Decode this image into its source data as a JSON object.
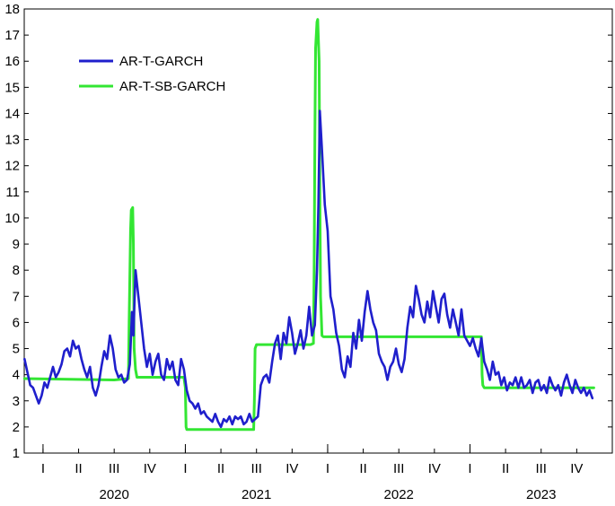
{
  "chart_data": {
    "type": "line",
    "title": "",
    "xlabel": "",
    "ylabel": "",
    "ylim": [
      1,
      18
    ],
    "y_ticks": [
      1,
      2,
      3,
      4,
      5,
      6,
      7,
      8,
      9,
      10,
      11,
      12,
      13,
      14,
      15,
      16,
      17,
      18
    ],
    "x_axis": {
      "range": [
        2020.0,
        2024.0
      ],
      "quarter_labels": [
        {
          "t": 2020.0,
          "label": "I"
        },
        {
          "t": 2020.25,
          "label": "II"
        },
        {
          "t": 2020.5,
          "label": "III"
        },
        {
          "t": 2020.75,
          "label": "IV"
        },
        {
          "t": 2021.0,
          "label": "I"
        },
        {
          "t": 2021.25,
          "label": "II"
        },
        {
          "t": 2021.5,
          "label": "III"
        },
        {
          "t": 2021.75,
          "label": "IV"
        },
        {
          "t": 2022.0,
          "label": "I"
        },
        {
          "t": 2022.25,
          "label": "II"
        },
        {
          "t": 2022.5,
          "label": "III"
        },
        {
          "t": 2022.75,
          "label": "IV"
        },
        {
          "t": 2023.0,
          "label": "I"
        },
        {
          "t": 2023.25,
          "label": "II"
        },
        {
          "t": 2023.5,
          "label": "III"
        },
        {
          "t": 2023.75,
          "label": "IV"
        }
      ],
      "year_labels": [
        {
          "t": 2020.5,
          "label": "2020"
        },
        {
          "t": 2021.5,
          "label": "2021"
        },
        {
          "t": 2022.5,
          "label": "2022"
        },
        {
          "t": 2023.5,
          "label": "2023"
        }
      ]
    },
    "legend_position": "top-left",
    "series": [
      {
        "name": "AR-T-GARCH",
        "color": "#1f1fcc",
        "points": [
          [
            2019.87,
            4.6
          ],
          [
            2019.89,
            4.1
          ],
          [
            2019.91,
            3.6
          ],
          [
            2019.93,
            3.5
          ],
          [
            2019.95,
            3.2
          ],
          [
            2019.97,
            2.9
          ],
          [
            2019.99,
            3.2
          ],
          [
            2020.01,
            3.7
          ],
          [
            2020.03,
            3.5
          ],
          [
            2020.05,
            3.9
          ],
          [
            2020.07,
            4.3
          ],
          [
            2020.09,
            3.9
          ],
          [
            2020.11,
            4.1
          ],
          [
            2020.13,
            4.4
          ],
          [
            2020.15,
            4.9
          ],
          [
            2020.17,
            5.0
          ],
          [
            2020.19,
            4.7
          ],
          [
            2020.21,
            5.3
          ],
          [
            2020.23,
            5.0
          ],
          [
            2020.25,
            5.1
          ],
          [
            2020.27,
            4.6
          ],
          [
            2020.29,
            4.2
          ],
          [
            2020.31,
            3.9
          ],
          [
            2020.33,
            4.3
          ],
          [
            2020.35,
            3.5
          ],
          [
            2020.37,
            3.2
          ],
          [
            2020.39,
            3.6
          ],
          [
            2020.41,
            4.3
          ],
          [
            2020.43,
            4.9
          ],
          [
            2020.45,
            4.6
          ],
          [
            2020.47,
            5.5
          ],
          [
            2020.49,
            5.0
          ],
          [
            2020.51,
            4.2
          ],
          [
            2020.53,
            3.9
          ],
          [
            2020.55,
            4.0
          ],
          [
            2020.57,
            3.7
          ],
          [
            2020.59,
            3.8
          ],
          [
            2020.61,
            4.4
          ],
          [
            2020.625,
            6.4
          ],
          [
            2020.635,
            5.5
          ],
          [
            2020.65,
            8.0
          ],
          [
            2020.67,
            7.0
          ],
          [
            2020.69,
            6.0
          ],
          [
            2020.71,
            5.0
          ],
          [
            2020.73,
            4.3
          ],
          [
            2020.75,
            4.8
          ],
          [
            2020.77,
            4.0
          ],
          [
            2020.79,
            4.5
          ],
          [
            2020.81,
            4.8
          ],
          [
            2020.83,
            4.0
          ],
          [
            2020.85,
            3.8
          ],
          [
            2020.87,
            4.6
          ],
          [
            2020.89,
            4.2
          ],
          [
            2020.91,
            4.5
          ],
          [
            2020.93,
            3.8
          ],
          [
            2020.95,
            3.6
          ],
          [
            2020.97,
            4.6
          ],
          [
            2020.99,
            4.2
          ],
          [
            2021.01,
            3.4
          ],
          [
            2021.03,
            3.0
          ],
          [
            2021.05,
            2.9
          ],
          [
            2021.07,
            2.7
          ],
          [
            2021.09,
            2.9
          ],
          [
            2021.11,
            2.5
          ],
          [
            2021.13,
            2.6
          ],
          [
            2021.15,
            2.4
          ],
          [
            2021.17,
            2.3
          ],
          [
            2021.19,
            2.2
          ],
          [
            2021.21,
            2.5
          ],
          [
            2021.23,
            2.2
          ],
          [
            2021.25,
            2.0
          ],
          [
            2021.27,
            2.3
          ],
          [
            2021.29,
            2.2
          ],
          [
            2021.31,
            2.4
          ],
          [
            2021.33,
            2.1
          ],
          [
            2021.35,
            2.4
          ],
          [
            2021.37,
            2.3
          ],
          [
            2021.39,
            2.4
          ],
          [
            2021.41,
            2.1
          ],
          [
            2021.43,
            2.2
          ],
          [
            2021.45,
            2.5
          ],
          [
            2021.47,
            2.2
          ],
          [
            2021.49,
            2.3
          ],
          [
            2021.51,
            2.4
          ],
          [
            2021.53,
            3.6
          ],
          [
            2021.55,
            3.9
          ],
          [
            2021.57,
            4.0
          ],
          [
            2021.59,
            3.7
          ],
          [
            2021.61,
            4.5
          ],
          [
            2021.63,
            5.2
          ],
          [
            2021.65,
            5.5
          ],
          [
            2021.67,
            4.6
          ],
          [
            2021.69,
            5.6
          ],
          [
            2021.71,
            5.2
          ],
          [
            2021.73,
            6.2
          ],
          [
            2021.75,
            5.6
          ],
          [
            2021.77,
            4.8
          ],
          [
            2021.79,
            5.2
          ],
          [
            2021.81,
            5.7
          ],
          [
            2021.83,
            5.0
          ],
          [
            2021.85,
            5.5
          ],
          [
            2021.87,
            6.6
          ],
          [
            2021.89,
            5.5
          ],
          [
            2021.91,
            5.9
          ],
          [
            2021.925,
            8.0
          ],
          [
            2021.935,
            10.5
          ],
          [
            2021.945,
            14.1
          ],
          [
            2021.96,
            12.6
          ],
          [
            2021.98,
            10.5
          ],
          [
            2022.0,
            9.5
          ],
          [
            2022.02,
            7.0
          ],
          [
            2022.04,
            6.5
          ],
          [
            2022.06,
            5.6
          ],
          [
            2022.08,
            5.1
          ],
          [
            2022.1,
            4.2
          ],
          [
            2022.12,
            3.9
          ],
          [
            2022.14,
            4.7
          ],
          [
            2022.16,
            4.3
          ],
          [
            2022.18,
            5.6
          ],
          [
            2022.2,
            5.0
          ],
          [
            2022.22,
            6.1
          ],
          [
            2022.24,
            5.3
          ],
          [
            2022.26,
            6.4
          ],
          [
            2022.28,
            7.2
          ],
          [
            2022.3,
            6.5
          ],
          [
            2022.32,
            6.0
          ],
          [
            2022.34,
            5.7
          ],
          [
            2022.36,
            4.8
          ],
          [
            2022.38,
            4.5
          ],
          [
            2022.4,
            4.3
          ],
          [
            2022.42,
            3.8
          ],
          [
            2022.44,
            4.3
          ],
          [
            2022.46,
            4.5
          ],
          [
            2022.48,
            5.0
          ],
          [
            2022.5,
            4.4
          ],
          [
            2022.52,
            4.1
          ],
          [
            2022.54,
            4.6
          ],
          [
            2022.56,
            5.8
          ],
          [
            2022.58,
            6.6
          ],
          [
            2022.6,
            6.2
          ],
          [
            2022.62,
            7.4
          ],
          [
            2022.64,
            6.9
          ],
          [
            2022.66,
            6.3
          ],
          [
            2022.68,
            6.0
          ],
          [
            2022.7,
            6.8
          ],
          [
            2022.72,
            6.2
          ],
          [
            2022.74,
            7.2
          ],
          [
            2022.76,
            6.6
          ],
          [
            2022.78,
            6.0
          ],
          [
            2022.8,
            6.9
          ],
          [
            2022.82,
            7.1
          ],
          [
            2022.84,
            6.3
          ],
          [
            2022.86,
            5.8
          ],
          [
            2022.88,
            6.5
          ],
          [
            2022.9,
            6.0
          ],
          [
            2022.92,
            5.5
          ],
          [
            2022.94,
            6.5
          ],
          [
            2022.96,
            5.5
          ],
          [
            2022.98,
            5.3
          ],
          [
            2023.0,
            5.1
          ],
          [
            2023.02,
            5.4
          ],
          [
            2023.04,
            5.0
          ],
          [
            2023.06,
            4.7
          ],
          [
            2023.08,
            5.4
          ],
          [
            2023.1,
            4.5
          ],
          [
            2023.12,
            4.2
          ],
          [
            2023.14,
            3.8
          ],
          [
            2023.16,
            4.5
          ],
          [
            2023.18,
            4.0
          ],
          [
            2023.2,
            4.1
          ],
          [
            2023.22,
            3.6
          ],
          [
            2023.24,
            3.9
          ],
          [
            2023.26,
            3.4
          ],
          [
            2023.28,
            3.7
          ],
          [
            2023.3,
            3.6
          ],
          [
            2023.32,
            3.9
          ],
          [
            2023.34,
            3.5
          ],
          [
            2023.36,
            3.9
          ],
          [
            2023.38,
            3.5
          ],
          [
            2023.4,
            3.6
          ],
          [
            2023.42,
            3.8
          ],
          [
            2023.44,
            3.3
          ],
          [
            2023.46,
            3.7
          ],
          [
            2023.48,
            3.8
          ],
          [
            2023.5,
            3.4
          ],
          [
            2023.52,
            3.6
          ],
          [
            2023.54,
            3.3
          ],
          [
            2023.56,
            3.9
          ],
          [
            2023.58,
            3.6
          ],
          [
            2023.6,
            3.4
          ],
          [
            2023.62,
            3.6
          ],
          [
            2023.64,
            3.2
          ],
          [
            2023.66,
            3.7
          ],
          [
            2023.68,
            4.0
          ],
          [
            2023.7,
            3.6
          ],
          [
            2023.72,
            3.3
          ],
          [
            2023.74,
            3.8
          ],
          [
            2023.76,
            3.5
          ],
          [
            2023.78,
            3.3
          ],
          [
            2023.8,
            3.5
          ],
          [
            2023.82,
            3.2
          ],
          [
            2023.84,
            3.4
          ],
          [
            2023.86,
            3.1
          ]
        ]
      },
      {
        "name": "AR-T-SB-GARCH",
        "color": "#33e633",
        "points": [
          [
            2019.87,
            3.85
          ],
          [
            2020.5,
            3.8
          ],
          [
            2020.6,
            3.85
          ],
          [
            2020.605,
            6.0
          ],
          [
            2020.615,
            9.5
          ],
          [
            2020.62,
            10.3
          ],
          [
            2020.63,
            10.4
          ],
          [
            2020.635,
            9.0
          ],
          [
            2020.64,
            5.0
          ],
          [
            2020.65,
            4.2
          ],
          [
            2020.66,
            3.9
          ],
          [
            2020.99,
            3.9
          ],
          [
            2021.0,
            3.5
          ],
          [
            2021.005,
            2.0
          ],
          [
            2021.01,
            1.9
          ],
          [
            2021.48,
            1.9
          ],
          [
            2021.485,
            3.0
          ],
          [
            2021.49,
            5.0
          ],
          [
            2021.5,
            5.15
          ],
          [
            2021.88,
            5.15
          ],
          [
            2021.9,
            5.2
          ],
          [
            2021.905,
            8.0
          ],
          [
            2021.91,
            13.0
          ],
          [
            2021.915,
            16.5
          ],
          [
            2021.925,
            17.5
          ],
          [
            2021.93,
            17.6
          ],
          [
            2021.94,
            16.0
          ],
          [
            2021.945,
            11.0
          ],
          [
            2021.95,
            7.0
          ],
          [
            2021.96,
            5.5
          ],
          [
            2021.97,
            5.45
          ],
          [
            2023.08,
            5.45
          ],
          [
            2023.085,
            4.0
          ],
          [
            2023.09,
            3.6
          ],
          [
            2023.1,
            3.5
          ],
          [
            2023.87,
            3.5
          ]
        ]
      }
    ]
  }
}
